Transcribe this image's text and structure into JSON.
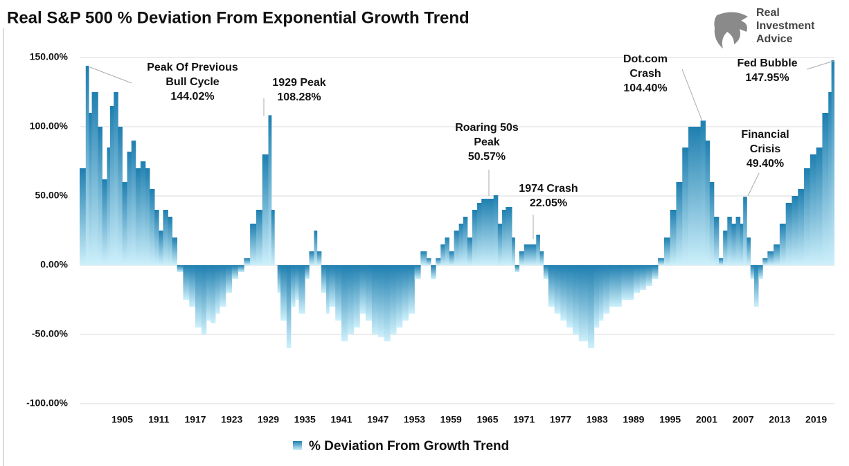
{
  "chart_data": {
    "type": "bar",
    "title": "Real S&P 500 % Deviation From Exponential Growth Trend",
    "logo": [
      "Real",
      "Investment",
      "Advice"
    ],
    "xlim": [
      1898,
      2022
    ],
    "xticks": [
      1905,
      1911,
      1917,
      1923,
      1929,
      1935,
      1941,
      1947,
      1953,
      1959,
      1965,
      1971,
      1977,
      1983,
      1989,
      1995,
      2001,
      2007,
      2013,
      2019
    ],
    "ylim": [
      -100,
      150
    ],
    "yticks": [
      {
        "value": -100,
        "label": "-100.00%"
      },
      {
        "value": -50,
        "label": "-50.00%"
      },
      {
        "value": 0,
        "label": "0.00%"
      },
      {
        "value": 50,
        "label": "50.00%"
      },
      {
        "value": 100,
        "label": "100.00%"
      },
      {
        "value": 150,
        "label": "150.00%"
      }
    ],
    "grid": true,
    "legend": "bottom",
    "annotations": [
      {
        "lines": [
          "Peak Of Previous",
          "Bull Cycle",
          "144.02%"
        ]
      },
      {
        "lines": [
          "1929 Peak",
          "108.28%"
        ]
      },
      {
        "lines": [
          "Roaring 50s",
          "Peak",
          "50.57%"
        ]
      },
      {
        "lines": [
          "1974 Crash",
          "22.05%"
        ]
      },
      {
        "lines": [
          "Dot.com",
          "Crash",
          "104.40%"
        ]
      },
      {
        "lines": [
          "Financial",
          "Crisis",
          "49.40%"
        ]
      },
      {
        "lines": [
          "Fed Bubble",
          "147.95%"
        ]
      }
    ],
    "series": [
      {
        "name": "% Deviation From Growth Trend",
        "color": "#1f7fb0",
        "color_light": "#cdf0fb",
        "x": [
          1898,
          1899,
          1899.5,
          1900,
          1901,
          1901.7,
          1902.5,
          1903,
          1903.6,
          1904.3,
          1905,
          1905.8,
          1906.5,
          1907.2,
          1908,
          1908.8,
          1909.5,
          1910.3,
          1911,
          1911.7,
          1912.5,
          1913.2,
          1914,
          1915,
          1916,
          1917,
          1918,
          1918.8,
          1919.5,
          1920.3,
          1921,
          1922,
          1923,
          1924,
          1925,
          1926,
          1927,
          1928,
          1929,
          1929.5,
          1930,
          1930.5,
          1931,
          1932,
          1932.7,
          1933.4,
          1934,
          1935,
          1935.7,
          1936.5,
          1937,
          1937.7,
          1938.5,
          1939,
          1940,
          1941,
          1942,
          1943,
          1944,
          1945,
          1946,
          1947,
          1948,
          1949,
          1950,
          1951,
          1952,
          1953,
          1954,
          1955,
          1955.7,
          1956.5,
          1957.3,
          1958,
          1958.7,
          1959.5,
          1960.3,
          1961,
          1961.7,
          1962.5,
          1963.3,
          1964,
          1966,
          1966.7,
          1967.4,
          1968,
          1969,
          1969.5,
          1970.2,
          1971,
          1973,
          1973.6,
          1974.2,
          1975,
          1976,
          1977,
          1978,
          1979,
          1980,
          1981.5,
          1982.5,
          1983.3,
          1984,
          1985,
          1986,
          1987,
          1988,
          1989,
          1990,
          1991,
          1992,
          1993,
          1994,
          1995,
          1996,
          1997,
          1998,
          2000,
          2000.8,
          2001.5,
          2002.2,
          2003,
          2003.7,
          2004.4,
          2005.1,
          2005.8,
          2006.5,
          2007,
          2007.6,
          2008.2,
          2008.8,
          2009.5,
          2010.2,
          2011,
          2012,
          2013,
          2014,
          2015,
          2016,
          2017,
          2018,
          2019,
          2020,
          2021,
          2021.5
        ],
        "values": [
          70,
          144.02,
          110,
          125,
          100,
          62,
          85,
          115,
          125,
          100,
          60,
          82,
          90,
          70,
          75,
          70,
          55,
          40,
          25,
          40,
          35,
          20,
          -5,
          -25,
          -30,
          -45,
          -50,
          -40,
          -42,
          -35,
          -30,
          -20,
          -10,
          -5,
          5,
          30,
          40,
          80,
          108.28,
          40,
          0,
          -20,
          -40,
          -60,
          -30,
          -25,
          -35,
          -10,
          10,
          25,
          10,
          -20,
          -35,
          -30,
          -40,
          -55,
          -50,
          -45,
          -35,
          -40,
          -50,
          -52,
          -55,
          -50,
          -45,
          -40,
          -35,
          -10,
          10,
          5,
          -10,
          5,
          15,
          20,
          10,
          25,
          30,
          35,
          20,
          40,
          45,
          48,
          50.57,
          30,
          40,
          42,
          20,
          -5,
          10,
          15,
          22.05,
          10,
          -10,
          -30,
          -35,
          -40,
          -45,
          -50,
          -55,
          -60,
          -45,
          -40,
          -35,
          -30,
          -30,
          -25,
          -25,
          -20,
          -18,
          -15,
          -10,
          5,
          20,
          40,
          60,
          85,
          100,
          104.4,
          90,
          60,
          35,
          5,
          25,
          35,
          30,
          35,
          30,
          49.4,
          20,
          -10,
          -30,
          -10,
          5,
          10,
          15,
          30,
          45,
          50,
          55,
          70,
          80,
          85,
          110,
          125,
          147.95
        ]
      }
    ]
  }
}
